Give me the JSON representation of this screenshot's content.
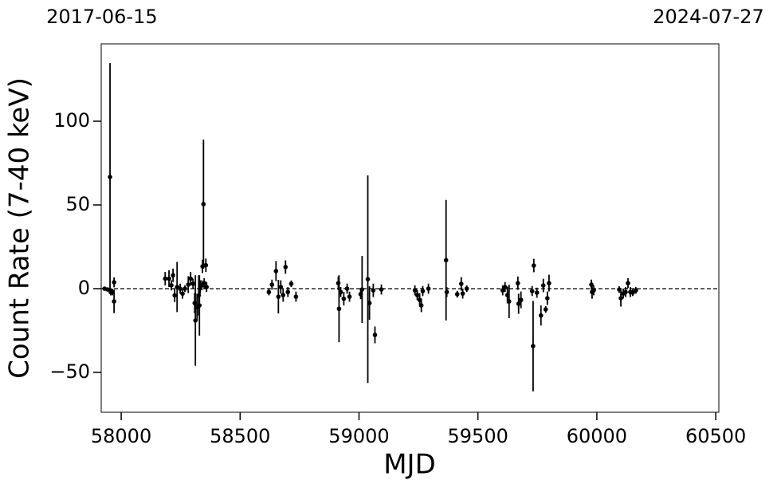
{
  "chart_data": {
    "type": "errorbar",
    "x_label": "MJD",
    "y_label": "Count Rate (7-40 keV)",
    "xlim": [
      57916,
      60513
    ],
    "ylim": [
      -73.8,
      146.2
    ],
    "xticks": [
      58000,
      58500,
      59000,
      59500,
      60000,
      60500
    ],
    "yticks": [
      {
        "value": -50,
        "label": "−50"
      },
      0,
      50,
      100
    ],
    "x2ticks": [
      {
        "value": 57919,
        "label": "2017-06-15"
      },
      {
        "value": 60518,
        "label": "2024-07-27"
      }
    ],
    "hline": 0,
    "color": "#000000",
    "x": [
      57930,
      57943,
      57953,
      57956,
      57963,
      57970,
      57970,
      58185,
      58201,
      58211,
      58218,
      58225,
      58235,
      58248,
      58258,
      58268,
      58282,
      58292,
      58302,
      58309,
      58312,
      58319,
      58326,
      58329,
      58332,
      58339,
      58342,
      58346,
      58349,
      58356,
      58359,
      58621,
      58634,
      58651,
      58661,
      58671,
      58681,
      58691,
      58701,
      58715,
      58735,
      58913,
      58916,
      58923,
      58936,
      58950,
      58960,
      59007,
      59013,
      59037,
      59044,
      59060,
      59067,
      59094,
      59235,
      59245,
      59255,
      59262,
      59268,
      59292,
      59366,
      59369,
      59413,
      59430,
      59436,
      59453,
      59604,
      59614,
      59624,
      59631,
      59668,
      59671,
      59681,
      59728,
      59732,
      59735,
      59748,
      59765,
      59775,
      59785,
      59792,
      59799,
      59977,
      59980,
      59987,
      60094,
      60101,
      60111,
      60121,
      60131,
      60141,
      60151,
      60164
    ],
    "values": [
      0,
      -0.5,
      66.7,
      -2,
      -2,
      3.8,
      -7.6,
      6,
      6,
      2,
      8,
      -4,
      1,
      0,
      -3,
      0,
      2.4,
      6,
      3,
      -8.6,
      -19,
      -11,
      -4,
      -10,
      1,
      2,
      13.3,
      50.5,
      3.3,
      14,
      1,
      -2,
      2.4,
      10.5,
      -4.8,
      1,
      -3.8,
      12.9,
      -2,
      2.9,
      -4.8,
      3.3,
      -12,
      -2,
      -6,
      0,
      -4.8,
      -3.3,
      -0.5,
      5.7,
      -8.6,
      -1,
      -27.6,
      -0.5,
      -1,
      -3.8,
      -6.7,
      -10,
      -1.4,
      0,
      17,
      -2,
      -3.3,
      2.9,
      -2.9,
      0,
      -1,
      1,
      -3.8,
      -7.6,
      3.3,
      -9,
      -6.7,
      -1.4,
      -34.3,
      13.8,
      -2.4,
      -16,
      1.9,
      -12.4,
      -5.7,
      3.3,
      2.4,
      -2,
      -1,
      -0.5,
      -5.7,
      -2.9,
      -2,
      3.3,
      -2,
      -2.4,
      -1
    ],
    "errors": [
      1,
      1,
      68,
      2,
      2,
      3,
      7,
      4,
      5,
      3,
      4,
      4,
      15,
      3,
      3,
      2,
      5,
      4,
      3,
      6,
      27,
      8,
      12,
      18,
      4,
      3,
      4,
      38.5,
      3,
      4,
      3,
      2,
      3,
      6,
      10,
      4,
      4,
      4,
      3,
      2,
      3,
      4,
      20,
      3,
      4,
      3,
      3,
      3,
      20,
      62,
      10,
      4,
      5,
      3,
      3,
      3,
      4,
      4,
      3,
      3,
      36,
      3,
      2,
      4,
      3,
      2,
      3,
      3,
      5,
      10,
      4,
      6,
      5,
      3,
      27,
      4,
      3,
      6,
      4,
      2,
      4,
      5,
      3,
      4,
      3,
      2,
      5,
      3,
      3,
      3,
      3,
      2,
      2
    ]
  }
}
